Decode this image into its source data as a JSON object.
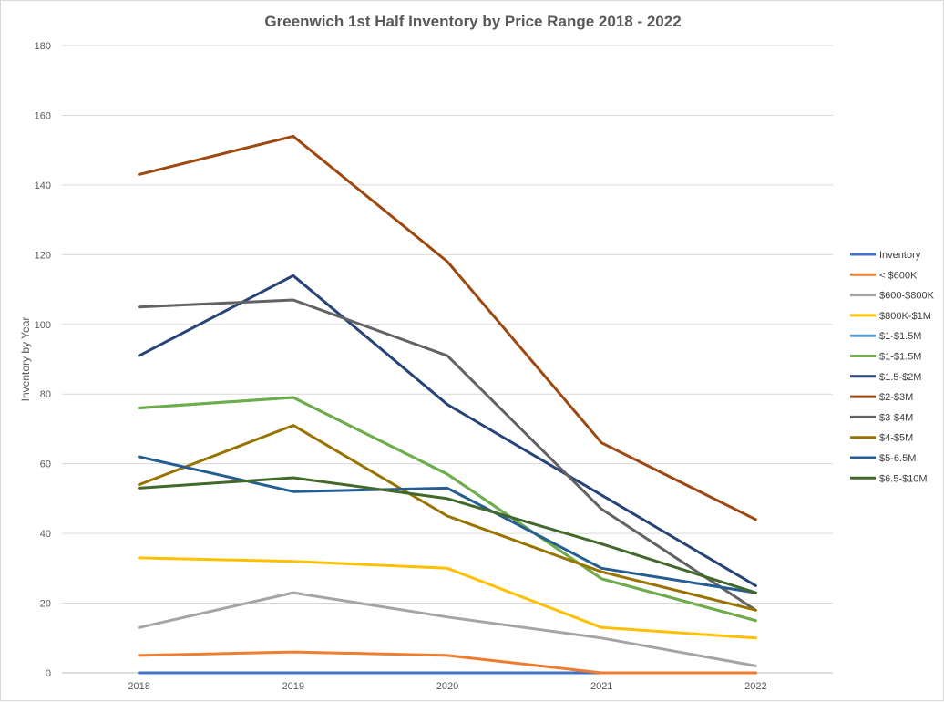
{
  "chart_data": {
    "type": "line",
    "title": "Greenwich 1st Half Inventory by Price Range 2018 - 2022",
    "xlabel": "",
    "ylabel": "Inventory by Year",
    "categories": [
      "2018",
      "2019",
      "2020",
      "2021",
      "2022"
    ],
    "ylim": [
      0,
      180
    ],
    "yticks": [
      "0",
      "20",
      "40",
      "60",
      "80",
      "100",
      "120",
      "140",
      "160",
      "180"
    ],
    "grid": true,
    "legend_position": "right",
    "series": [
      {
        "name": "Inventory",
        "color": "#4472C4",
        "values": [
          0,
          0,
          0,
          0,
          0
        ]
      },
      {
        "name": "< $600K",
        "color": "#ED7D31",
        "values": [
          5,
          6,
          5,
          0,
          0
        ]
      },
      {
        "name": "$600-$800K",
        "color": "#A5A5A5",
        "values": [
          13,
          23,
          16,
          10,
          2
        ]
      },
      {
        "name": "$800K-$1M",
        "color": "#FFC000",
        "values": [
          33,
          32,
          30,
          13,
          10
        ]
      },
      {
        "name": "$1-$1.5M",
        "color": "#5B9BD5",
        "values": [
          76,
          79,
          57,
          27,
          15
        ]
      },
      {
        "name": "$1-$1.5M",
        "color": "#70AD47",
        "values": [
          76,
          79,
          57,
          27,
          15
        ]
      },
      {
        "name": "$1.5-$2M",
        "color": "#264478",
        "values": [
          91,
          114,
          77,
          51,
          25
        ]
      },
      {
        "name": "$2-$3M",
        "color": "#9E480E",
        "values": [
          143,
          154,
          118,
          66,
          44
        ]
      },
      {
        "name": "$3-$4M",
        "color": "#636363",
        "values": [
          105,
          107,
          91,
          47,
          18
        ]
      },
      {
        "name": "$4-$5M",
        "color": "#997300",
        "values": [
          54,
          71,
          45,
          29,
          18
        ]
      },
      {
        "name": "$5-6.5M",
        "color": "#255E91",
        "values": [
          62,
          52,
          53,
          30,
          23
        ]
      },
      {
        "name": "$6.5-$10M",
        "color": "#43682B",
        "values": [
          53,
          56,
          50,
          37,
          23
        ]
      }
    ]
  }
}
